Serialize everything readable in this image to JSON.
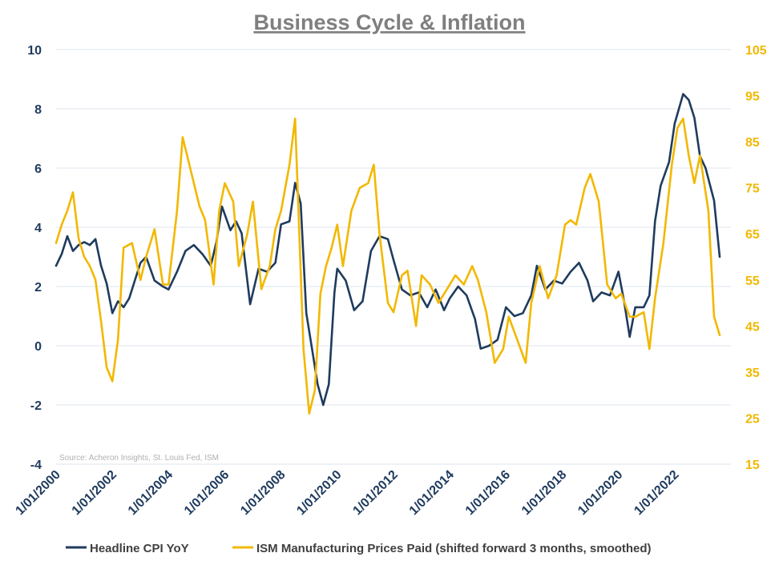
{
  "chart_data": {
    "type": "line",
    "title": "Business Cycle & Inflation",
    "source_note": "Source: Acheron Insights, St. Louis Fed, ISM",
    "x_ticks": [
      "1/01/2000",
      "1/01/2002",
      "1/01/2004",
      "1/01/2006",
      "1/01/2008",
      "1/01/2010",
      "1/01/2012",
      "1/01/2014",
      "1/01/2016",
      "1/01/2018",
      "1/01/2020",
      "1/01/2022"
    ],
    "xlim": [
      2000.0,
      2024.0
    ],
    "y_left": {
      "min": -4,
      "max": 10,
      "ticks": [
        "10",
        "8",
        "6",
        "4",
        "2",
        "0",
        "-2",
        "-4"
      ]
    },
    "y_right": {
      "min": 15,
      "max": 105,
      "ticks": [
        "105",
        "95",
        "85",
        "75",
        "65",
        "55",
        "45",
        "35",
        "25",
        "15"
      ]
    },
    "grid": "horizontal",
    "legend_position": "bottom",
    "series": [
      {
        "name": "Headline CPI YoY",
        "axis": "left",
        "color": "#1f3b5e",
        "x": [
          2000.0,
          2000.2,
          2000.4,
          2000.6,
          2000.8,
          2001.0,
          2001.2,
          2001.4,
          2001.6,
          2001.8,
          2002.0,
          2002.2,
          2002.4,
          2002.6,
          2002.8,
          2003.0,
          2003.2,
          2003.5,
          2003.8,
          2004.0,
          2004.3,
          2004.6,
          2004.9,
          2005.2,
          2005.5,
          2005.7,
          2005.9,
          2006.2,
          2006.4,
          2006.6,
          2006.9,
          2007.2,
          2007.5,
          2007.8,
          2008.0,
          2008.3,
          2008.5,
          2008.7,
          2008.9,
          2009.1,
          2009.3,
          2009.5,
          2009.7,
          2009.9,
          2010.0,
          2010.3,
          2010.6,
          2010.9,
          2011.2,
          2011.5,
          2011.8,
          2012.0,
          2012.3,
          2012.6,
          2012.9,
          2013.2,
          2013.5,
          2013.8,
          2014.0,
          2014.3,
          2014.6,
          2014.9,
          2015.1,
          2015.4,
          2015.7,
          2016.0,
          2016.3,
          2016.6,
          2016.9,
          2017.1,
          2017.4,
          2017.7,
          2018.0,
          2018.3,
          2018.6,
          2018.9,
          2019.1,
          2019.4,
          2019.7,
          2020.0,
          2020.2,
          2020.4,
          2020.6,
          2020.9,
          2021.1,
          2021.3,
          2021.5,
          2021.8,
          2022.0,
          2022.3,
          2022.5,
          2022.7,
          2022.9,
          2023.1,
          2023.4,
          2023.6
        ],
        "values": [
          2.7,
          3.1,
          3.7,
          3.2,
          3.4,
          3.5,
          3.4,
          3.6,
          2.7,
          2.1,
          1.1,
          1.5,
          1.3,
          1.6,
          2.2,
          2.8,
          3.0,
          2.2,
          2.0,
          1.9,
          2.5,
          3.2,
          3.4,
          3.1,
          2.7,
          3.5,
          4.7,
          3.9,
          4.2,
          3.8,
          1.4,
          2.6,
          2.5,
          2.8,
          4.1,
          4.2,
          5.5,
          4.8,
          1.1,
          -0.1,
          -1.3,
          -2.0,
          -1.3,
          1.8,
          2.6,
          2.2,
          1.2,
          1.5,
          3.2,
          3.7,
          3.6,
          2.9,
          1.9,
          1.7,
          1.8,
          1.3,
          1.9,
          1.2,
          1.6,
          2.0,
          1.7,
          0.9,
          -0.1,
          0.0,
          0.2,
          1.3,
          1.0,
          1.1,
          1.7,
          2.7,
          1.9,
          2.2,
          2.1,
          2.5,
          2.8,
          2.2,
          1.5,
          1.8,
          1.7,
          2.5,
          1.5,
          0.3,
          1.3,
          1.3,
          1.7,
          4.2,
          5.4,
          6.2,
          7.5,
          8.5,
          8.3,
          7.7,
          6.4,
          6.0,
          4.9,
          3.0
        ]
      },
      {
        "name": "ISM Manufacturing Prices Paid (shifted forward 3 months, smoothed)",
        "axis": "right",
        "color": "#f2b800",
        "x": [
          2000.0,
          2000.2,
          2000.4,
          2000.6,
          2000.8,
          2001.0,
          2001.2,
          2001.4,
          2001.6,
          2001.8,
          2002.0,
          2002.2,
          2002.4,
          2002.7,
          2003.0,
          2003.2,
          2003.5,
          2003.8,
          2004.0,
          2004.3,
          2004.5,
          2004.7,
          2004.9,
          2005.1,
          2005.3,
          2005.6,
          2005.8,
          2006.0,
          2006.3,
          2006.5,
          2006.8,
          2007.0,
          2007.3,
          2007.6,
          2007.8,
          2008.0,
          2008.3,
          2008.5,
          2008.8,
          2009.0,
          2009.2,
          2009.4,
          2009.6,
          2009.8,
          2010.0,
          2010.2,
          2010.5,
          2010.8,
          2011.1,
          2011.3,
          2011.5,
          2011.8,
          2012.0,
          2012.3,
          2012.5,
          2012.8,
          2013.0,
          2013.3,
          2013.6,
          2013.9,
          2014.2,
          2014.5,
          2014.8,
          2015.0,
          2015.3,
          2015.6,
          2015.9,
          2016.1,
          2016.4,
          2016.7,
          2016.9,
          2017.2,
          2017.5,
          2017.8,
          2018.1,
          2018.3,
          2018.5,
          2018.8,
          2019.0,
          2019.3,
          2019.6,
          2019.9,
          2020.1,
          2020.4,
          2020.6,
          2020.9,
          2021.1,
          2021.3,
          2021.6,
          2021.9,
          2022.1,
          2022.3,
          2022.5,
          2022.7,
          2022.9,
          2023.2,
          2023.4,
          2023.6
        ],
        "values": [
          63,
          67,
          70,
          74,
          64,
          60,
          58,
          55,
          46,
          36,
          33,
          42,
          62,
          63,
          55,
          60,
          66,
          54,
          54,
          70,
          86,
          81,
          76,
          71,
          68,
          54,
          70,
          76,
          72,
          58,
          65,
          72,
          53,
          58,
          66,
          70,
          80,
          90,
          40,
          26,
          31,
          52,
          58,
          62,
          67,
          58,
          70,
          75,
          76,
          80,
          65,
          50,
          48,
          56,
          57,
          45,
          56,
          54,
          50,
          53,
          56,
          54,
          58,
          55,
          48,
          37,
          40,
          47,
          42,
          37,
          50,
          58,
          51,
          56,
          67,
          68,
          67,
          75,
          78,
          72,
          54,
          51,
          52,
          47,
          47,
          48,
          40,
          51,
          63,
          80,
          88,
          90,
          82,
          76,
          82,
          70,
          47,
          43
        ]
      }
    ]
  }
}
